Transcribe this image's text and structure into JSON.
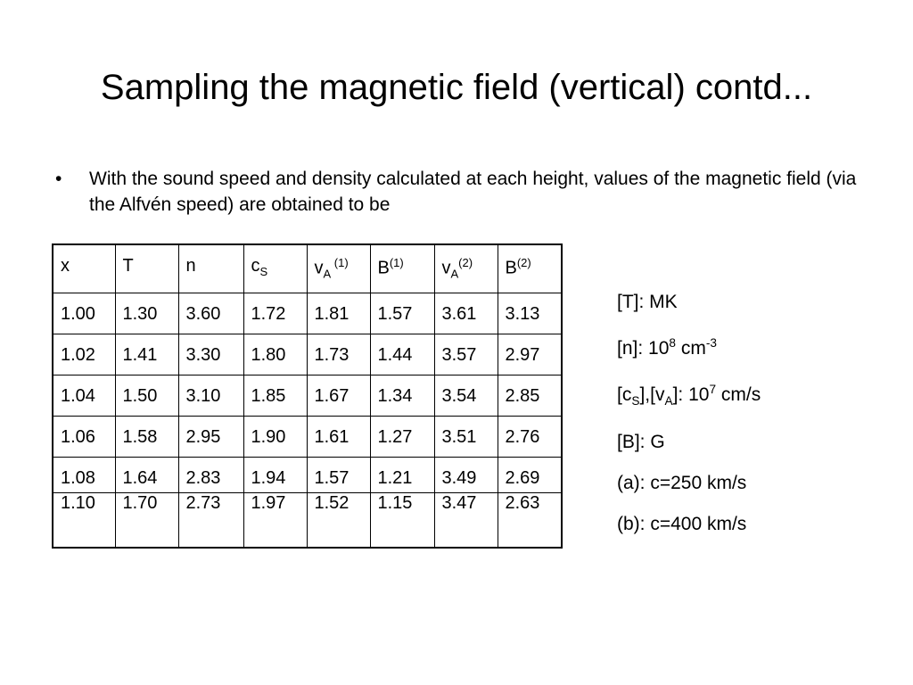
{
  "title": "Sampling the magnetic field (vertical) contd...",
  "bullet": {
    "marker": "•",
    "text": "With the sound speed and density calculated at each height, values of the magnetic field (via the Alfvén speed) are obtained to be"
  },
  "table": {
    "headers": [
      {
        "base": "x",
        "sub": "",
        "sup": ""
      },
      {
        "base": "T",
        "sub": "",
        "sup": ""
      },
      {
        "base": "n",
        "sub": "",
        "sup": ""
      },
      {
        "base": "c",
        "sub": "S",
        "sup": ""
      },
      {
        "base": "v",
        "sub": "A",
        "sup": " (1)"
      },
      {
        "base": "B",
        "sub": "",
        "sup": "(1)"
      },
      {
        "base": "v",
        "sub": "A",
        "sup": "(2)"
      },
      {
        "base": "B",
        "sub": "",
        "sup": "(2)"
      }
    ],
    "rows": [
      [
        "1.00",
        "1.30",
        "3.60",
        "1.72",
        "1.81",
        "1.57",
        "3.61",
        "3.13"
      ],
      [
        "1.02",
        "1.41",
        "3.30",
        "1.80",
        "1.73",
        "1.44",
        "3.57",
        "2.97"
      ],
      [
        "1.04",
        "1.50",
        "3.10",
        "1.85",
        "1.67",
        "1.34",
        "3.54",
        "2.85"
      ],
      [
        "1.06",
        "1.58",
        "2.95",
        "1.90",
        "1.61",
        "1.27",
        "3.51",
        "2.76"
      ],
      [
        "1.08",
        "1.64",
        "2.83",
        "1.94",
        "1.57",
        "1.21",
        "3.49",
        "2.69"
      ],
      [
        "1.10",
        "1.70",
        "2.73",
        "1.97",
        "1.52",
        "1.15",
        "3.47",
        "2.63"
      ]
    ]
  },
  "units": {
    "T": {
      "text": "[T]: MK"
    },
    "n": {
      "pre": "[n]: 10",
      "exp": "8",
      "mid": " cm",
      "exp2": "-3"
    },
    "speeds": {
      "p1": "[c",
      "s1": "S",
      "p2": "],[v",
      "s2": "A",
      "p3": "]: 10",
      "exp": "7",
      "p4": " cm/s"
    },
    "B": {
      "text": "[B]: G"
    },
    "a": {
      "text": "(a): c=250 km/s"
    },
    "b": {
      "text": "(b): c=400 km/s"
    }
  }
}
